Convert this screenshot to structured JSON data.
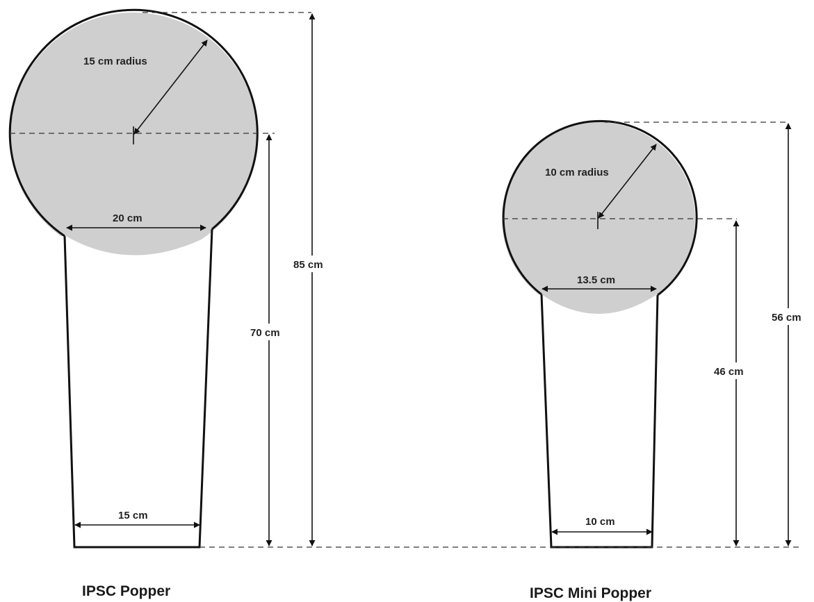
{
  "popper": {
    "title": "IPSC Popper",
    "radius_label": "15 cm radius",
    "neck_width_label": "20 cm",
    "base_width_label": "15 cm",
    "center_height_label": "70 cm",
    "total_height_label": "85 cm"
  },
  "mini_popper": {
    "title": "IPSC Mini Popper",
    "radius_label": "10 cm radius",
    "neck_width_label": "13.5 cm",
    "base_width_label": "10 cm",
    "center_height_label": "46 cm",
    "total_height_label": "56 cm"
  },
  "colors": {
    "plate_fill": "#cfcfcf",
    "outline": "#111111",
    "background": "#ffffff"
  }
}
